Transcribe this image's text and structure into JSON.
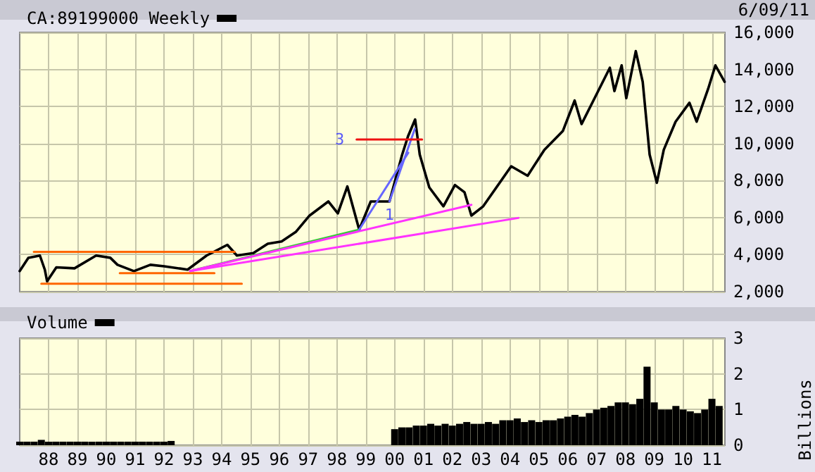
{
  "chart_data": [
    {
      "type": "line",
      "legend": "top left",
      "grid": true,
      "marker": "none",
      "tick_labels": "y",
      "xlim": [
        1987,
        2011.45
      ],
      "xticks": [
        1988,
        1989,
        1990,
        1991,
        1992,
        1993,
        1994,
        1995,
        1996,
        1997,
        1998,
        1999,
        2000,
        2001,
        2002,
        2003,
        2004,
        2005,
        2006,
        2007,
        2008,
        2009,
        2010,
        2011
      ],
      "ylim": [
        2000,
        16000
      ],
      "yticks": [
        {
          "value": 2000,
          "label": "2,000"
        },
        {
          "value": 4000,
          "label": "4,000"
        },
        {
          "value": 6000,
          "label": "6,000"
        },
        {
          "value": 8000,
          "label": "8,000"
        },
        {
          "value": 10000,
          "label": "10,000"
        },
        {
          "value": 12000,
          "label": "12,000"
        },
        {
          "value": 14000,
          "label": "14,000"
        },
        {
          "value": 16000,
          "label": "16,000"
        }
      ],
      "annotations": [
        "6/09/11",
        {
          "text": "3",
          "x": 1998.45,
          "y": 10220
        },
        {
          "text": "1",
          "x": 1999.82,
          "y": 6870
        }
      ],
      "series": [
        {
          "name": "CA:89199000 Weekly",
          "color": "#000000",
          "x": [
            1987.0,
            1987.3,
            1987.7,
            1987.87,
            1987.95,
            1988.27,
            1988.9,
            1989.65,
            1990.14,
            1990.39,
            1990.96,
            1991.53,
            1992.01,
            1992.82,
            1993.48,
            1994.2,
            1994.53,
            1995.1,
            1995.6,
            1996.08,
            1996.57,
            1997.05,
            1997.7,
            1998.03,
            1998.36,
            1998.77,
            1999.17,
            1999.82,
            2000.26,
            2000.47,
            2000.71,
            2000.87,
            2001.2,
            2001.69,
            2002.09,
            2002.42,
            2002.66,
            2003.07,
            2004.04,
            2004.61,
            2005.19,
            2005.83,
            2006.24,
            2006.48,
            2006.89,
            2007.46,
            2007.62,
            2007.87,
            2008.03,
            2008.36,
            2008.6,
            2008.84,
            2009.09,
            2009.33,
            2009.74,
            2010.22,
            2010.47,
            2010.87,
            2011.12,
            2011.44
          ],
          "values": [
            3110,
            3830,
            3950,
            3190,
            2560,
            3310,
            3260,
            3950,
            3830,
            3450,
            3110,
            3450,
            3370,
            3190,
            3950,
            4530,
            3950,
            4080,
            4590,
            4710,
            5220,
            6110,
            6870,
            6230,
            7680,
            5350,
            6870,
            6870,
            9400,
            10420,
            11300,
            9400,
            7630,
            6610,
            7760,
            7370,
            6110,
            6610,
            8770,
            8260,
            9660,
            10670,
            12320,
            11050,
            12320,
            14090,
            12830,
            14220,
            12450,
            14990,
            13330,
            9400,
            7880,
            9660,
            11180,
            12200,
            11180,
            12960,
            14220,
            13330
          ]
        },
        {
          "color": "#ff6600",
          "x": [
            1987.49,
            1994.45
          ],
          "values": [
            4150,
            4150
          ]
        },
        {
          "color": "#ff6600",
          "x": [
            1990.47,
            1993.75
          ],
          "values": [
            3000,
            3000
          ]
        },
        {
          "color": "#ff6600",
          "x": [
            1987.75,
            1994.7
          ],
          "values": [
            2430,
            2430
          ]
        },
        {
          "color": "#33cc33",
          "x": [
            1992.91,
            1998.77
          ],
          "values": [
            3110,
            5350
          ]
        },
        {
          "color": "#ff33ff",
          "x": [
            1992.91,
            2002.66
          ],
          "values": [
            3110,
            6690
          ]
        },
        {
          "color": "#ff33ff",
          "x": [
            1992.91,
            2004.29
          ],
          "values": [
            3110,
            5980
          ]
        },
        {
          "color": "#6666ff",
          "x": [
            1998.77,
            2000.47
          ],
          "values": [
            5350,
            9500
          ]
        },
        {
          "color": "#6666ff",
          "x": [
            1999.82,
            2000.7
          ],
          "values": [
            6870,
            10800
          ]
        },
        {
          "color": "#ee1111",
          "x": [
            1998.68,
            2000.95
          ],
          "values": [
            10220,
            10220
          ]
        }
      ]
    },
    {
      "type": "bar",
      "legend": "top left",
      "grid": true,
      "ylabel": "Billions",
      "xlim": [
        1987,
        2011.45
      ],
      "xticks": [
        {
          "value": 1988,
          "label": "88"
        },
        {
          "value": 1989,
          "label": "89"
        },
        {
          "value": 1990,
          "label": "90"
        },
        {
          "value": 1991,
          "label": "91"
        },
        {
          "value": 1992,
          "label": "92"
        },
        {
          "value": 1993,
          "label": "93"
        },
        {
          "value": 1994,
          "label": "94"
        },
        {
          "value": 1995,
          "label": "95"
        },
        {
          "value": 1996,
          "label": "96"
        },
        {
          "value": 1997,
          "label": "97"
        },
        {
          "value": 1998,
          "label": "98"
        },
        {
          "value": 1999,
          "label": "99"
        },
        {
          "value": 2000,
          "label": "00"
        },
        {
          "value": 2001,
          "label": "01"
        },
        {
          "value": 2002,
          "label": "02"
        },
        {
          "value": 2003,
          "label": "03"
        },
        {
          "value": 2004,
          "label": "04"
        },
        {
          "value": 2005,
          "label": "05"
        },
        {
          "value": 2006,
          "label": "06"
        },
        {
          "value": 2007,
          "label": "07"
        },
        {
          "value": 2008,
          "label": "08"
        },
        {
          "value": 2009,
          "label": "09"
        },
        {
          "value": 2010,
          "label": "10"
        },
        {
          "value": 2011,
          "label": "11"
        }
      ],
      "ylim": [
        0,
        3
      ],
      "yticks": [
        0,
        1,
        2,
        3
      ],
      "x": [
        1987.0,
        1987.25,
        1987.5,
        1987.75,
        1988.0,
        1988.25,
        1988.5,
        1988.75,
        1989.0,
        1989.25,
        1989.5,
        1989.75,
        1990.0,
        1990.25,
        1990.5,
        1990.75,
        1991.0,
        1991.25,
        1991.5,
        1991.75,
        1992.0,
        1992.25,
        2000.0,
        2000.25,
        2000.5,
        2000.75,
        2001.0,
        2001.25,
        2001.5,
        2001.75,
        2002.0,
        2002.25,
        2002.5,
        2002.75,
        2003.0,
        2003.25,
        2003.5,
        2003.75,
        2004.0,
        2004.25,
        2004.5,
        2004.75,
        2005.0,
        2005.25,
        2005.5,
        2005.75,
        2006.0,
        2006.25,
        2006.5,
        2006.75,
        2007.0,
        2007.25,
        2007.5,
        2007.75,
        2008.0,
        2008.25,
        2008.5,
        2008.75,
        2009.0,
        2009.25,
        2009.5,
        2009.75,
        2010.0,
        2010.25,
        2010.5,
        2010.75,
        2011.0,
        2011.25
      ],
      "series": [
        {
          "name": "Volume",
          "color": "#000000",
          "values": [
            0.1,
            0.1,
            0.1,
            0.15,
            0.1,
            0.1,
            0.1,
            0.1,
            0.1,
            0.1,
            0.1,
            0.1,
            0.1,
            0.1,
            0.1,
            0.1,
            0.1,
            0.1,
            0.1,
            0.1,
            0.1,
            0.12,
            0.45,
            0.5,
            0.5,
            0.55,
            0.55,
            0.6,
            0.55,
            0.6,
            0.55,
            0.6,
            0.65,
            0.6,
            0.6,
            0.65,
            0.6,
            0.7,
            0.7,
            0.75,
            0.65,
            0.7,
            0.65,
            0.7,
            0.7,
            0.75,
            0.8,
            0.85,
            0.8,
            0.9,
            1.0,
            1.05,
            1.1,
            1.2,
            1.2,
            1.15,
            1.3,
            2.2,
            1.2,
            1.0,
            1.0,
            1.1,
            1.0,
            0.95,
            0.9,
            1.0,
            1.3,
            1.1
          ]
        }
      ]
    }
  ]
}
